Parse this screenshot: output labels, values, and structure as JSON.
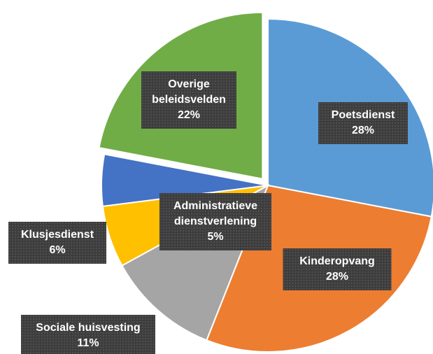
{
  "chart_data": {
    "type": "pie",
    "categories": [
      "Poetsdienst",
      "Kinderopvang",
      "Sociale huisvesting",
      "Klusjesdienst",
      "Administratieve dienstverlening",
      "Overige beleidsvelden"
    ],
    "values": [
      28,
      28,
      11,
      6,
      5,
      22
    ],
    "value_labels": [
      "28%",
      "28%",
      "11%",
      "6%",
      "5%",
      "22%"
    ],
    "colors": [
      "#5b9bd5",
      "#ed7d31",
      "#a5a5a5",
      "#ffc000",
      "#4472c4",
      "#70ad47"
    ],
    "exploded": [
      5
    ]
  }
}
